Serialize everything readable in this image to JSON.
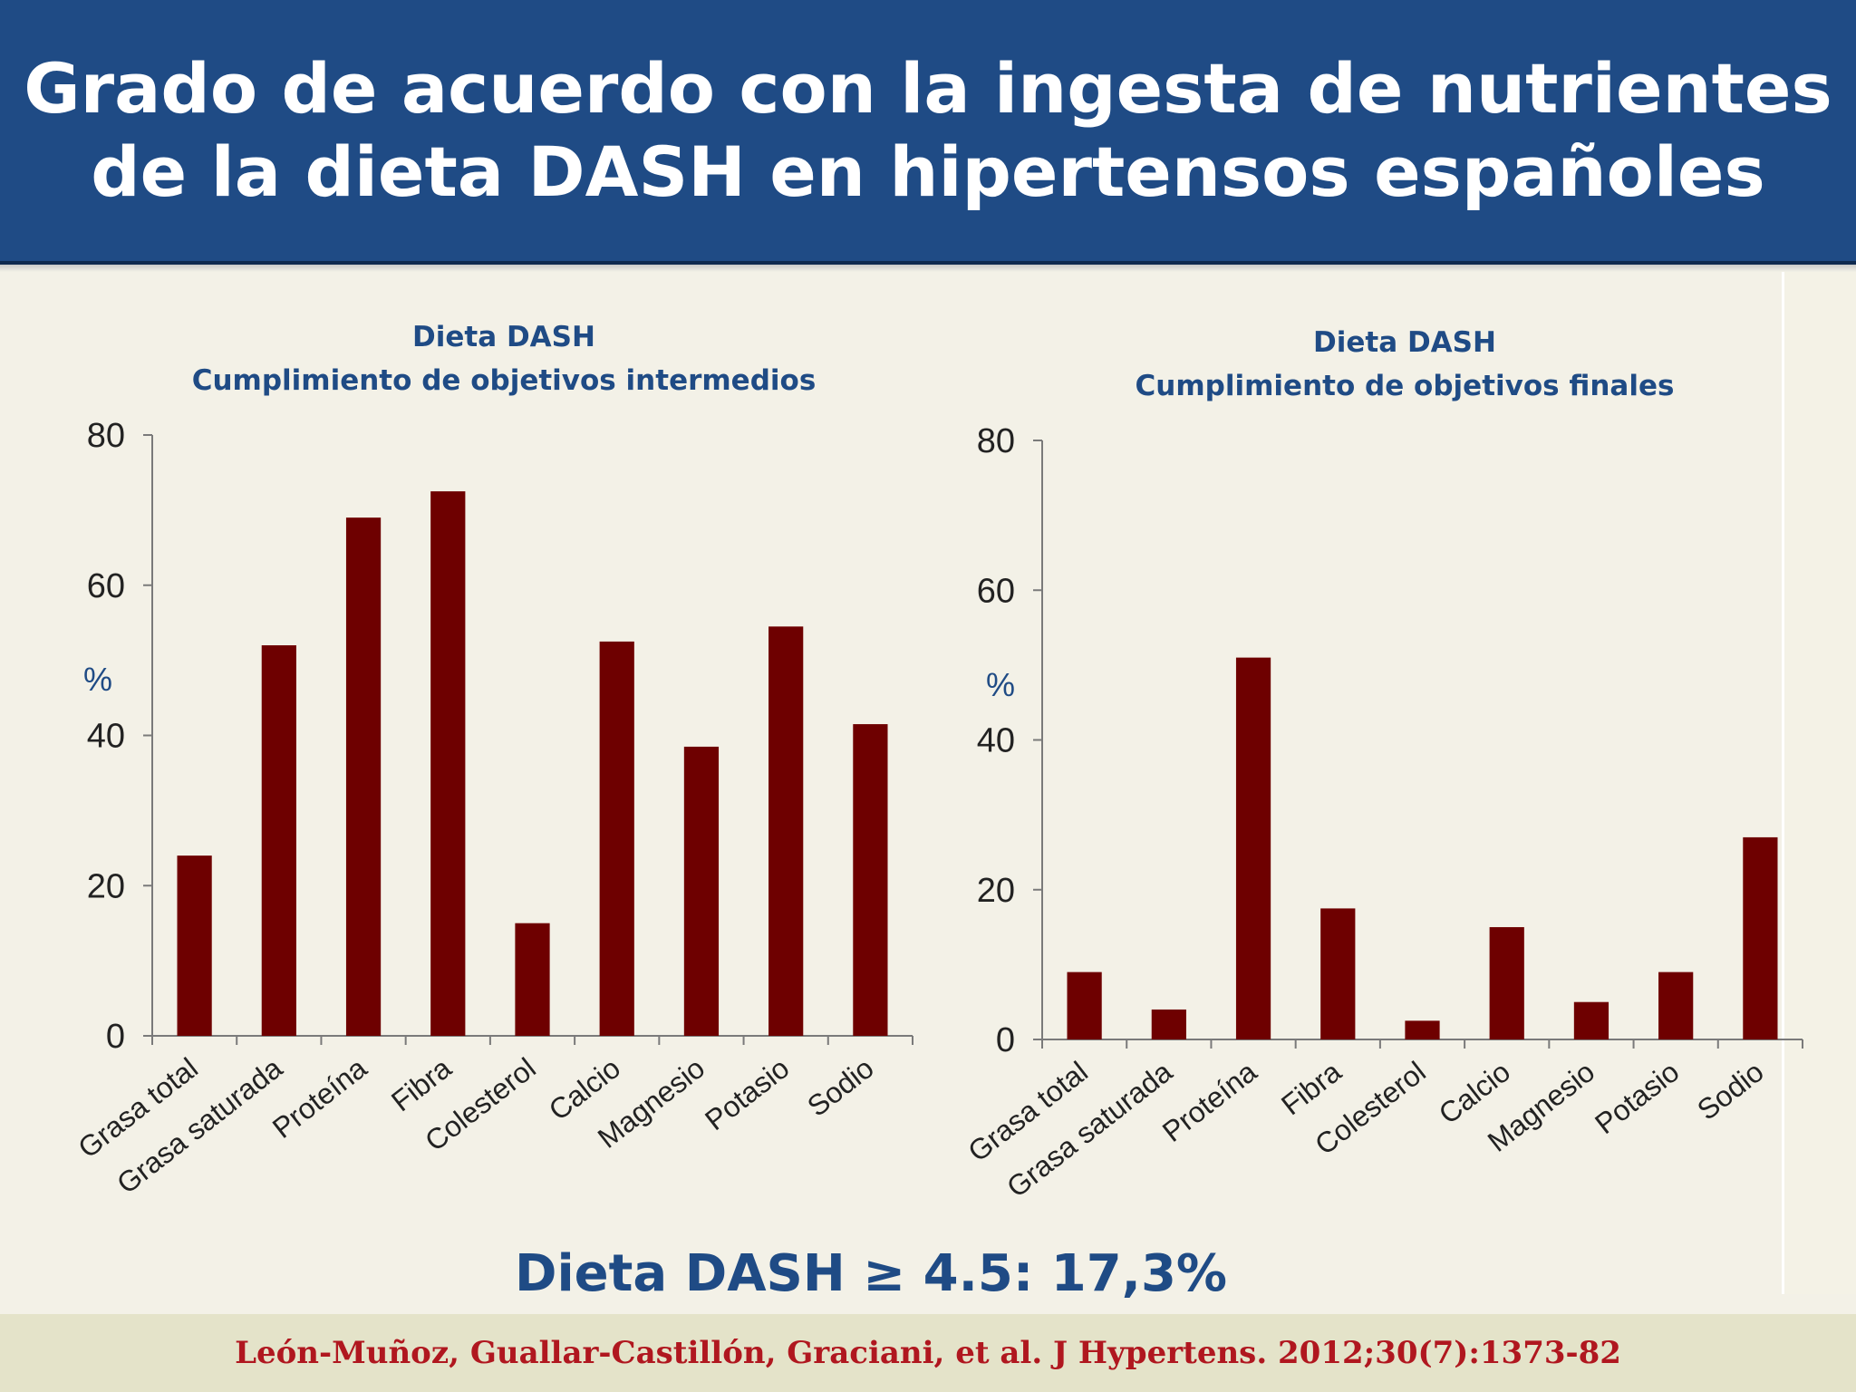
{
  "slide": {
    "title": "Grado de acuerdo con la ingesta de nutrientes\nde la dieta DASH en hipertensos españoles",
    "summary": "Dieta DASH ≥ 4.5: 17,3%",
    "citation": "León-Muñoz, Guallar-Castillón, Graciani, et al. J Hypertens. 2012;30(7):1373-82"
  },
  "chart_data": [
    {
      "type": "bar",
      "title": "Dieta DASH",
      "subtitle": "Cumplimiento  de objetivos intermedios",
      "ylabel": "%",
      "ylim": [
        0,
        80
      ],
      "yticks": [
        "0",
        "20",
        "40",
        "60",
        "80"
      ],
      "categories": [
        "Grasa total",
        "Grasa saturada",
        "Proteína",
        "Fibra",
        "Colesterol",
        "Calcio",
        "Magnesio",
        "Potasio",
        "Sodio"
      ],
      "values": [
        24,
        52,
        69,
        72.5,
        15,
        52.5,
        38.5,
        54.5,
        41.5
      ],
      "bar_color": "#6e0000",
      "grid": false
    },
    {
      "type": "bar",
      "title": "Dieta DASH",
      "subtitle": "Cumplimiento  de objetivos finales",
      "ylabel": "%",
      "ylim": [
        0,
        80
      ],
      "yticks": [
        "0",
        "20",
        "40",
        "60",
        "80"
      ],
      "categories": [
        "Grasa total",
        "Grasa saturada",
        "Proteína",
        "Fibra",
        "Colesterol",
        "Calcio",
        "Magnesio",
        "Potasio",
        "Sodio"
      ],
      "values": [
        9,
        4,
        51,
        17.5,
        2.5,
        15,
        5,
        9,
        27
      ],
      "bar_color": "#6e0000",
      "grid": false
    }
  ]
}
